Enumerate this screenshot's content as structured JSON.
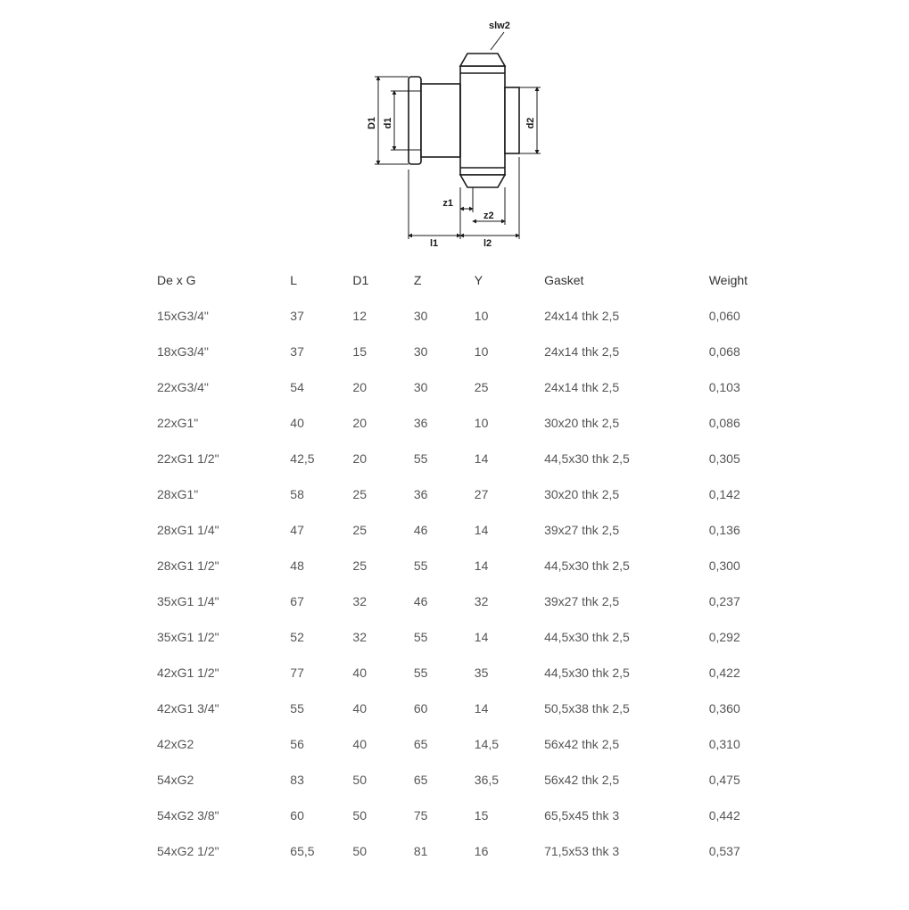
{
  "diagram": {
    "labels": {
      "slw2": "slw2",
      "D1": "D1",
      "d1": "d1",
      "d2": "d2",
      "z1": "z1",
      "z2": "z2",
      "l1": "l1",
      "l2": "l2"
    },
    "stroke_color": "#1a1a1a",
    "background": "#ffffff"
  },
  "table": {
    "columns": [
      "De x G",
      "L",
      "D1",
      "Z",
      "Y",
      "Gasket",
      "Weight"
    ],
    "rows": [
      [
        "15xG3/4\"",
        "37",
        "12",
        "30",
        "10",
        "24x14 thk 2,5",
        "0,060"
      ],
      [
        "18xG3/4\"",
        "37",
        "15",
        "30",
        "10",
        "24x14 thk 2,5",
        "0,068"
      ],
      [
        "22xG3/4\"",
        "54",
        "20",
        "30",
        "25",
        "24x14 thk 2,5",
        "0,103"
      ],
      [
        "22xG1\"",
        "40",
        "20",
        "36",
        "10",
        "30x20 thk 2,5",
        "0,086"
      ],
      [
        "22xG1 1/2\"",
        "42,5",
        "20",
        "55",
        "14",
        "44,5x30 thk 2,5",
        "0,305"
      ],
      [
        "28xG1\"",
        "58",
        "25",
        "36",
        "27",
        "30x20 thk 2,5",
        "0,142"
      ],
      [
        "28xG1 1/4\"",
        "47",
        "25",
        "46",
        "14",
        "39x27 thk 2,5",
        "0,136"
      ],
      [
        "28xG1 1/2\"",
        "48",
        "25",
        "55",
        "14",
        "44,5x30 thk 2,5",
        "0,300"
      ],
      [
        "35xG1 1/4\"",
        "67",
        "32",
        "46",
        "32",
        "39x27 thk 2,5",
        "0,237"
      ],
      [
        "35xG1 1/2\"",
        "52",
        "32",
        "55",
        "14",
        "44,5x30 thk 2,5",
        "0,292"
      ],
      [
        "42xG1 1/2\"",
        "77",
        "40",
        "55",
        "35",
        "44,5x30 thk 2,5",
        "0,422"
      ],
      [
        "42xG1 3/4\"",
        "55",
        "40",
        "60",
        "14",
        "50,5x38 thk 2,5",
        "0,360"
      ],
      [
        "42xG2",
        "56",
        "40",
        "65",
        "14,5",
        "56x42 thk 2,5",
        "0,310"
      ],
      [
        "54xG2",
        "83",
        "50",
        "65",
        "36,5",
        "56x42 thk 2,5",
        "0,475"
      ],
      [
        "54xG2 3/8\"",
        "60",
        "50",
        "75",
        "15",
        "65,5x45 thk 3",
        "0,442"
      ],
      [
        "54xG2 1/2\"",
        "65,5",
        "50",
        "81",
        "16",
        "71,5x53 thk 3",
        "0,537"
      ]
    ]
  }
}
